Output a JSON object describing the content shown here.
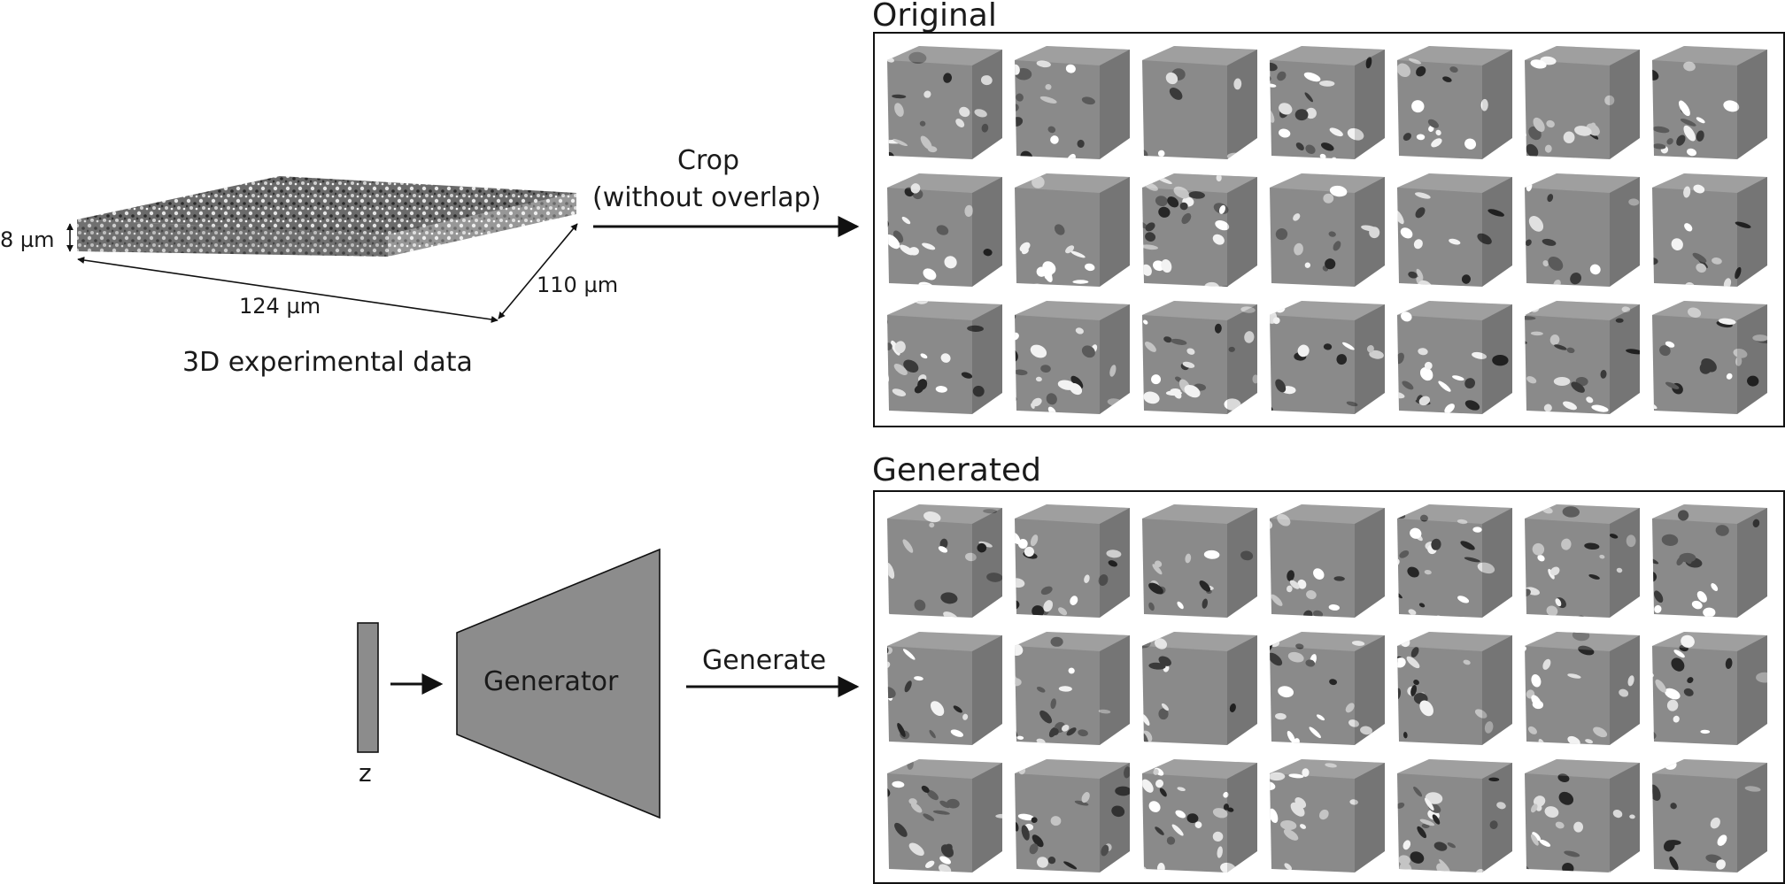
{
  "experimental": {
    "depth_label": "8 µm",
    "length_label": "124 µm",
    "width_label": "110 µm",
    "caption": "3D experimental data"
  },
  "crop": {
    "line1": "Crop",
    "line2": "(without overlap)"
  },
  "panels": {
    "original_title": "Original",
    "generated_title": "Generated",
    "rows": 3,
    "cols": 7
  },
  "generator": {
    "label": "Generator",
    "latent_label": "z",
    "generate_label": "Generate",
    "fill_color": "#8c8c8c"
  }
}
